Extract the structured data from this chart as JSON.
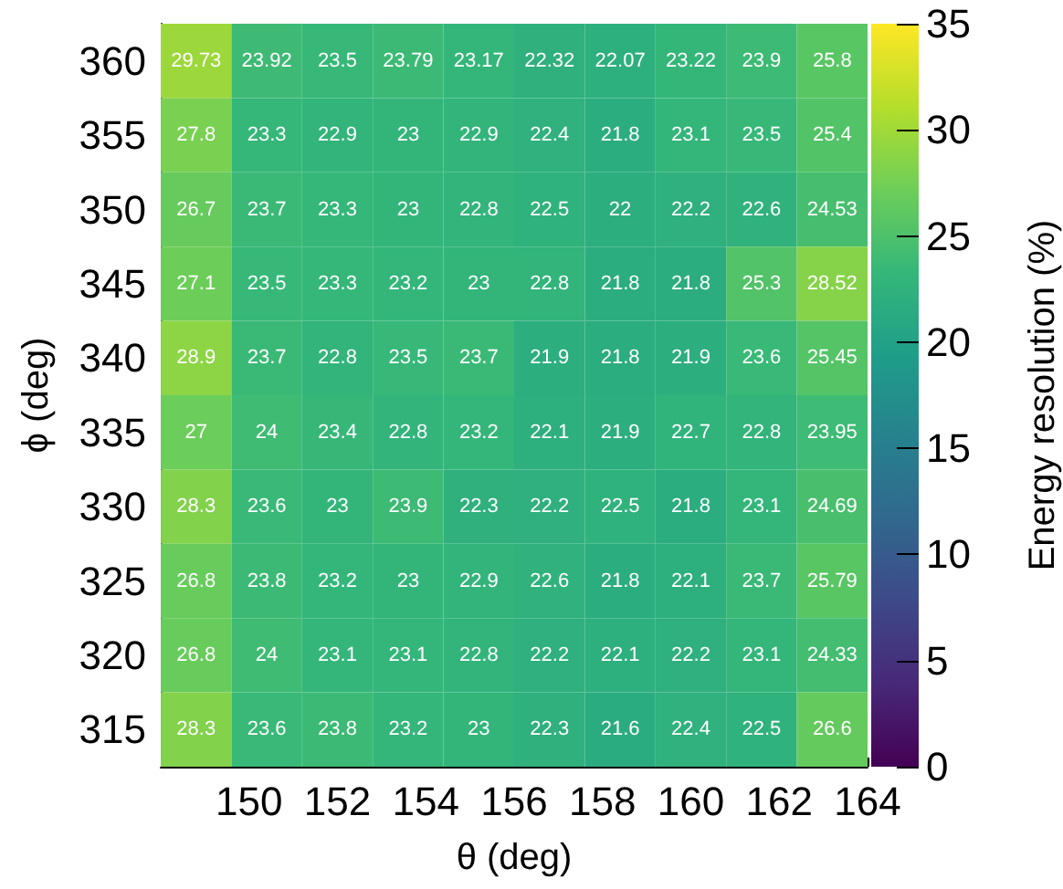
{
  "chart_data": {
    "type": "heatmap",
    "x": [
      148.8,
      150.4,
      152,
      153.6,
      155.2,
      156.8,
      158.4,
      160,
      161.6,
      163.2
    ],
    "xlim": [
      148,
      164
    ],
    "xticks": [
      150,
      152,
      154,
      156,
      158,
      160,
      162,
      164
    ],
    "y_categories": [
      "360",
      "355",
      "350",
      "345",
      "340",
      "335",
      "330",
      "325",
      "320",
      "315"
    ],
    "xlabel": "θ (deg)",
    "ylabel": "ϕ (deg)",
    "clabel": "Energy resolution (%)",
    "clim": [
      0,
      35
    ],
    "cticks": [
      0,
      5,
      10,
      15,
      20,
      25,
      30,
      35
    ],
    "data_labels": true,
    "cells": [
      [
        29.73,
        23.92,
        23.5,
        23.79,
        23.17,
        22.32,
        22.07,
        23.22,
        23.9,
        25.8
      ],
      [
        27.8,
        23.3,
        22.9,
        23,
        22.9,
        22.4,
        21.8,
        23.1,
        23.5,
        25.4
      ],
      [
        26.7,
        23.7,
        23.3,
        23,
        22.8,
        22.5,
        22,
        22.2,
        22.6,
        24.53
      ],
      [
        27.1,
        23.5,
        23.3,
        23.2,
        23,
        22.8,
        21.8,
        21.8,
        25.3,
        28.52
      ],
      [
        28.9,
        23.7,
        22.8,
        23.5,
        23.7,
        21.9,
        21.8,
        21.9,
        23.6,
        25.45
      ],
      [
        27,
        24,
        23.4,
        22.8,
        23.2,
        22.1,
        21.9,
        22.7,
        22.8,
        23.95
      ],
      [
        28.3,
        23.6,
        23,
        23.9,
        22.3,
        22.2,
        22.5,
        21.8,
        23.1,
        24.69
      ],
      [
        26.8,
        23.8,
        23.2,
        23,
        22.9,
        22.6,
        21.8,
        22.1,
        23.7,
        25.79
      ],
      [
        26.8,
        24,
        23.1,
        23.1,
        22.8,
        22.2,
        22.1,
        22.2,
        23.1,
        24.33
      ],
      [
        28.3,
        23.6,
        23.8,
        23.2,
        23,
        22.3,
        21.6,
        22.4,
        22.5,
        26.6
      ]
    ]
  }
}
